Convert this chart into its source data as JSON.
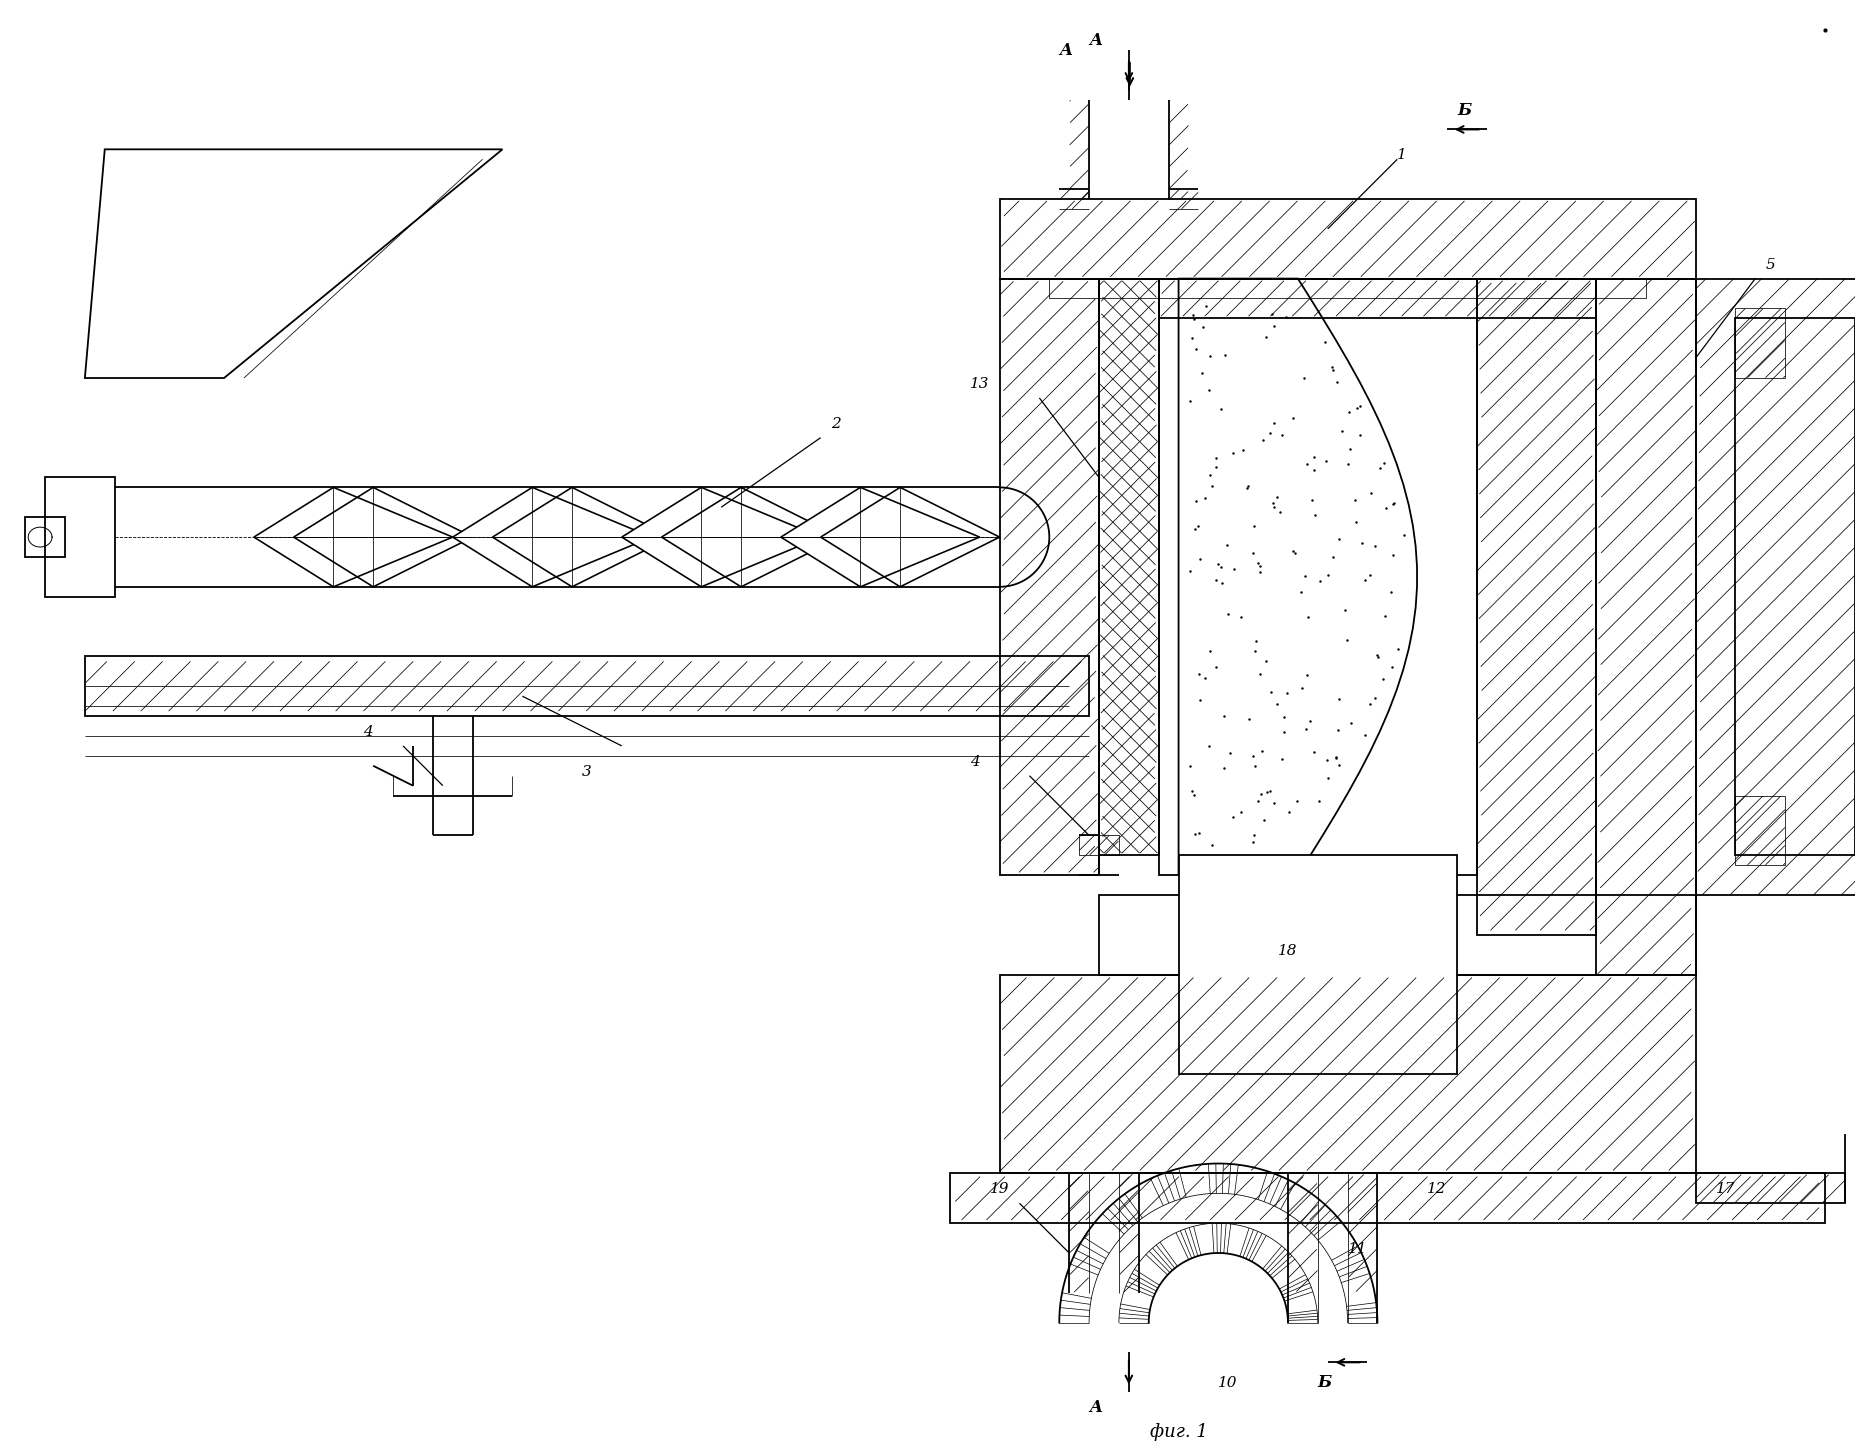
{
  "bg_color": "#ffffff",
  "line_color": "#000000",
  "fig_width": 18.6,
  "fig_height": 14.56,
  "title": "фиг. 1",
  "label_A": "A",
  "label_B": "Б",
  "label_1": "1",
  "label_2": "2",
  "label_3": "3",
  "label_4": "4",
  "label_5": "5",
  "label_10": "10",
  "label_11": "11",
  "label_12": "12",
  "label_13": "13",
  "label_17": "17",
  "label_18": "18",
  "label_19": "19"
}
